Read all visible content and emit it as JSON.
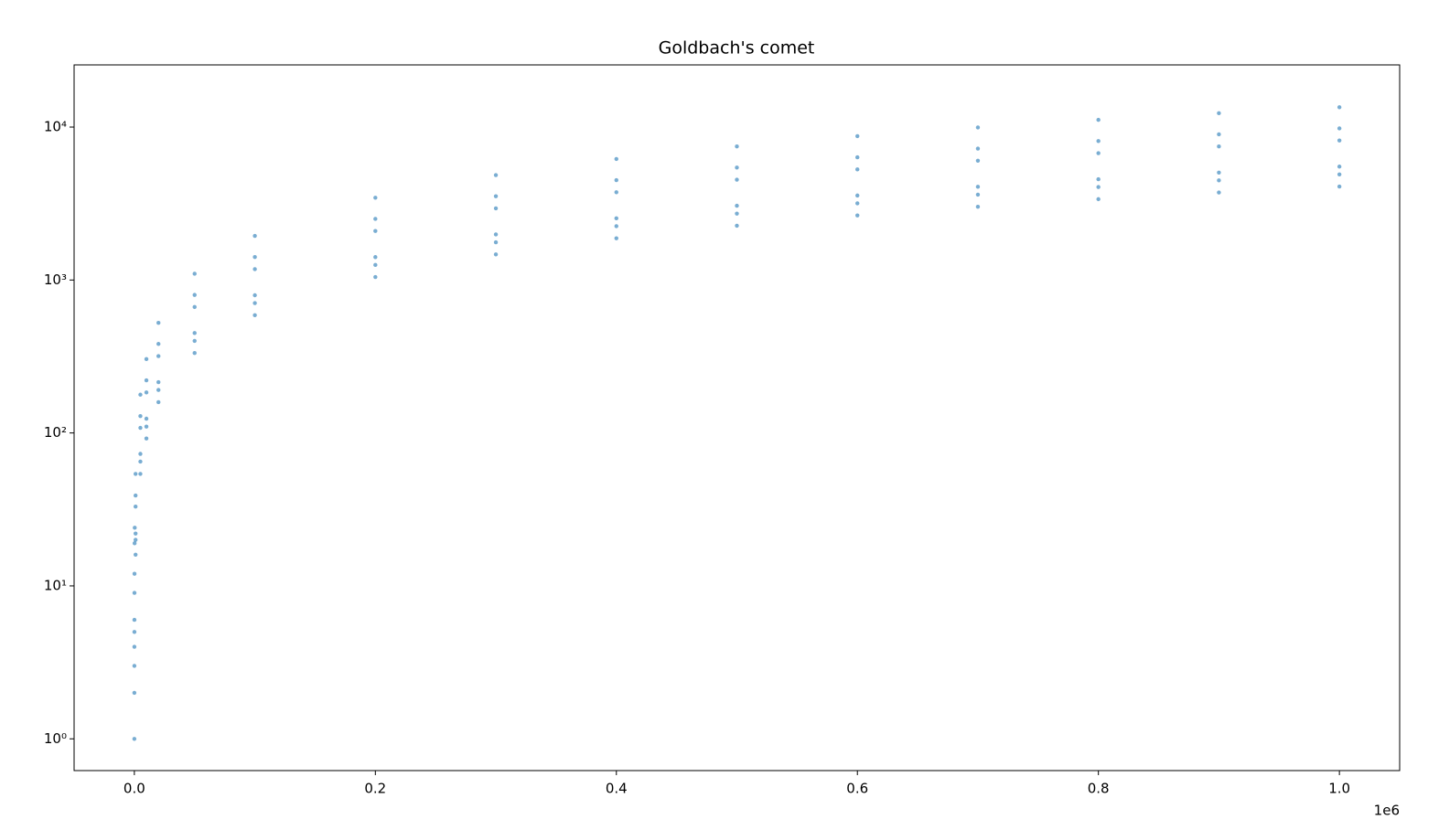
{
  "chart_data": {
    "type": "scatter",
    "title": "Goldbach's comet",
    "x_offset_label": "1e6",
    "log_y": true,
    "color": "#1f77b4",
    "xlim": [
      -50000,
      1050000
    ],
    "xticks": [
      {
        "value": 0,
        "label": "0.0"
      },
      {
        "value": 200000,
        "label": "0.2"
      },
      {
        "value": 400000,
        "label": "0.4"
      },
      {
        "value": 600000,
        "label": "0.6"
      },
      {
        "value": 800000,
        "label": "0.8"
      },
      {
        "value": 1000000,
        "label": "1.0"
      }
    ],
    "ylim": [
      0.62,
      25500
    ],
    "yticks": [
      {
        "value": 1,
        "label": "10⁰"
      },
      {
        "value": 10,
        "label": "10¹"
      },
      {
        "value": 100,
        "label": "10²"
      },
      {
        "value": 1000,
        "label": "10³"
      },
      {
        "value": 10000,
        "label": "10⁴"
      }
    ],
    "x": [
      4,
      10,
      22,
      34,
      48,
      60,
      90,
      120,
      210,
      330,
      1000,
      1000,
      1000,
      1000,
      1000,
      1000,
      5000,
      5000,
      5000,
      5000,
      5000,
      5000,
      10000,
      10000,
      10000,
      10000,
      10000,
      10000,
      20000,
      20000,
      20000,
      20000,
      20000,
      20000,
      50000,
      50000,
      50000,
      50000,
      50000,
      50000,
      100000,
      100000,
      100000,
      100000,
      100000,
      100000,
      200000,
      200000,
      200000,
      200000,
      200000,
      200000,
      300000,
      300000,
      300000,
      300000,
      300000,
      300000,
      400000,
      400000,
      400000,
      400000,
      400000,
      400000,
      500000,
      500000,
      500000,
      500000,
      500000,
      500000,
      600000,
      600000,
      600000,
      600000,
      600000,
      600000,
      700000,
      700000,
      700000,
      700000,
      700000,
      700000,
      800000,
      800000,
      800000,
      800000,
      800000,
      800000,
      900000,
      900000,
      900000,
      900000,
      900000,
      900000,
      1000000,
      1000000,
      1000000,
      1000000,
      1000000,
      1000000
    ],
    "y": [
      1,
      2,
      3,
      4,
      5,
      6,
      9,
      12,
      19,
      24,
      16,
      20,
      22,
      33,
      39,
      54,
      54,
      65,
      73,
      108,
      129,
      178,
      92,
      110,
      124,
      184,
      221,
      304,
      159,
      191,
      215,
      318,
      382,
      525,
      333,
      400,
      450,
      666,
      799,
      1099,
      589,
      707,
      795,
      1178,
      1414,
      1944,
      1046,
      1255,
      1412,
      2092,
      2510,
      3452,
      1471,
      1765,
      1986,
      2942,
      3530,
      4854,
      1875,
      2250,
      2531,
      3750,
      4500,
      6188,
      2265,
      2718,
      3058,
      4530,
      5436,
      7475,
      2644,
      3173,
      3569,
      5288,
      6346,
      8725,
      3014,
      3617,
      4069,
      6028,
      7234,
      9946,
      3378,
      4054,
      4560,
      6756,
      8107,
      11147,
      3735,
      4482,
      5042,
      7470,
      8964,
      12326,
      4086,
      4903,
      5516,
      8172,
      9806,
      13484
    ]
  }
}
